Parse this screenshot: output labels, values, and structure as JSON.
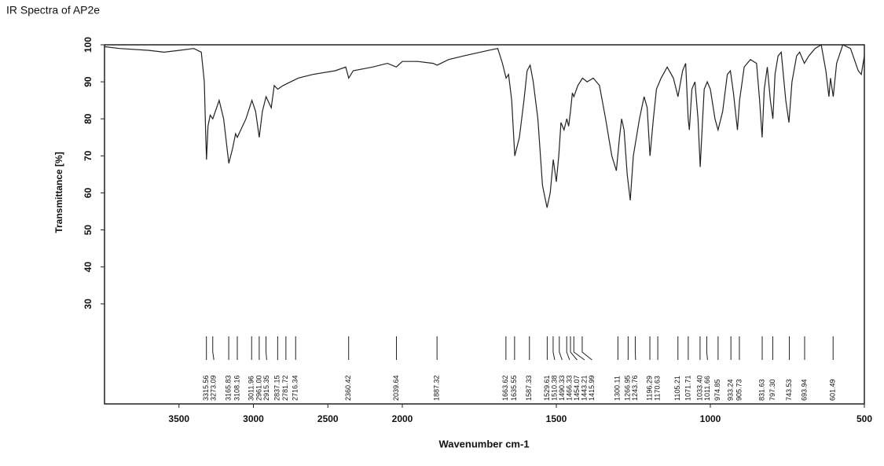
{
  "chart_data": {
    "type": "line",
    "title": "IR Spectra of AP2e",
    "x_label": "Wavenumber cm-1",
    "y_label": "Transmittance [%]",
    "xlim": [
      4000,
      500
    ],
    "x_scale_break": 2000,
    "ylim": [
      3,
      100
    ],
    "xticks": [
      3500,
      3000,
      2500,
      2000,
      1500,
      1000,
      500
    ],
    "yticks": [
      30,
      40,
      50,
      60,
      70,
      80,
      90,
      100
    ],
    "color": "#222222",
    "x": [
      4000,
      3900,
      3700,
      3600,
      3500,
      3400,
      3350,
      3330,
      3320,
      3315,
      3305,
      3290,
      3273,
      3230,
      3200,
      3165,
      3140,
      3120,
      3108,
      3050,
      3010,
      2985,
      2961,
      2940,
      2915,
      2880,
      2860,
      2837,
      2800,
      2700,
      2600,
      2450,
      2380,
      2360,
      2330,
      2200,
      2100,
      2040,
      2000,
      1950,
      1900,
      1887,
      1850,
      1800,
      1720,
      1690,
      1675,
      1663,
      1655,
      1645,
      1635,
      1620,
      1605,
      1595,
      1585,
      1575,
      1560,
      1545,
      1530,
      1520,
      1510,
      1500,
      1492,
      1485,
      1475,
      1466,
      1460,
      1454,
      1448,
      1443,
      1430,
      1415,
      1400,
      1380,
      1360,
      1340,
      1320,
      1305,
      1295,
      1288,
      1280,
      1270,
      1260,
      1250,
      1240,
      1230,
      1215,
      1205,
      1196,
      1185,
      1175,
      1160,
      1140,
      1120,
      1105,
      1090,
      1080,
      1072,
      1068,
      1060,
      1050,
      1040,
      1033,
      1025,
      1020,
      1010,
      1000,
      985,
      975,
      960,
      945,
      935,
      925,
      912,
      905,
      890,
      870,
      850,
      840,
      832,
      825,
      815,
      805,
      797,
      790,
      780,
      770,
      755,
      745,
      735,
      720,
      710,
      695,
      680,
      660,
      640,
      625,
      615,
      610,
      601,
      590,
      570,
      545,
      520,
      510,
      500
    ],
    "values": [
      99.5,
      99,
      98.5,
      98,
      98.5,
      99,
      98,
      90,
      75,
      69,
      78,
      81,
      80,
      85,
      80,
      68,
      72,
      76,
      75,
      80,
      85,
      82,
      75,
      82,
      86,
      83,
      89,
      88,
      89,
      91,
      92,
      93,
      94,
      91,
      93,
      94,
      95,
      94,
      95.5,
      95.5,
      95,
      94.5,
      96,
      97,
      98.5,
      99,
      95,
      91,
      92,
      85,
      70,
      75,
      85,
      93,
      94.5,
      90,
      80,
      62,
      56,
      60,
      69,
      63,
      70,
      79,
      77,
      80,
      78,
      82,
      87,
      86,
      89,
      91,
      90,
      91,
      89,
      80,
      70,
      66,
      75,
      80,
      77,
      65,
      58,
      70,
      75,
      80,
      86,
      83,
      70,
      80,
      88,
      91,
      94,
      91,
      86,
      93,
      95,
      80,
      77,
      88,
      90,
      80,
      67,
      80,
      88,
      90,
      88,
      80,
      77,
      82,
      92,
      93,
      87,
      77,
      85,
      94,
      96,
      95,
      85,
      75,
      88,
      94,
      85,
      80,
      92,
      97,
      98,
      85,
      79,
      90,
      97,
      98,
      95,
      97,
      99,
      100,
      93,
      86,
      91,
      86,
      95,
      100,
      99,
      93,
      92,
      97
    ],
    "peak_labels": [
      3315.56,
      3273.09,
      3165.83,
      3108.16,
      3011.96,
      {
        "value": 2961,
        "label": "2961.00"
      },
      2915.35,
      2837.15,
      2781.72,
      2716.34,
      2360.42,
      2039.64,
      1887.32,
      1663.62,
      1635.55,
      1587.33,
      1529.61,
      1510.38,
      1490.33,
      1466.33,
      1454.07,
      1443.21,
      1415.99,
      1300.11,
      1266.95,
      1243.76,
      1196.29,
      1170.63,
      1105.21,
      1071.71,
      {
        "value": 1033.4,
        "label": "1033.40"
      },
      1011.66,
      974.85,
      933.24,
      905.73,
      831.63,
      {
        "value": 797.3,
        "label": "797.30"
      },
      743.53,
      693.94,
      601.49
    ]
  }
}
